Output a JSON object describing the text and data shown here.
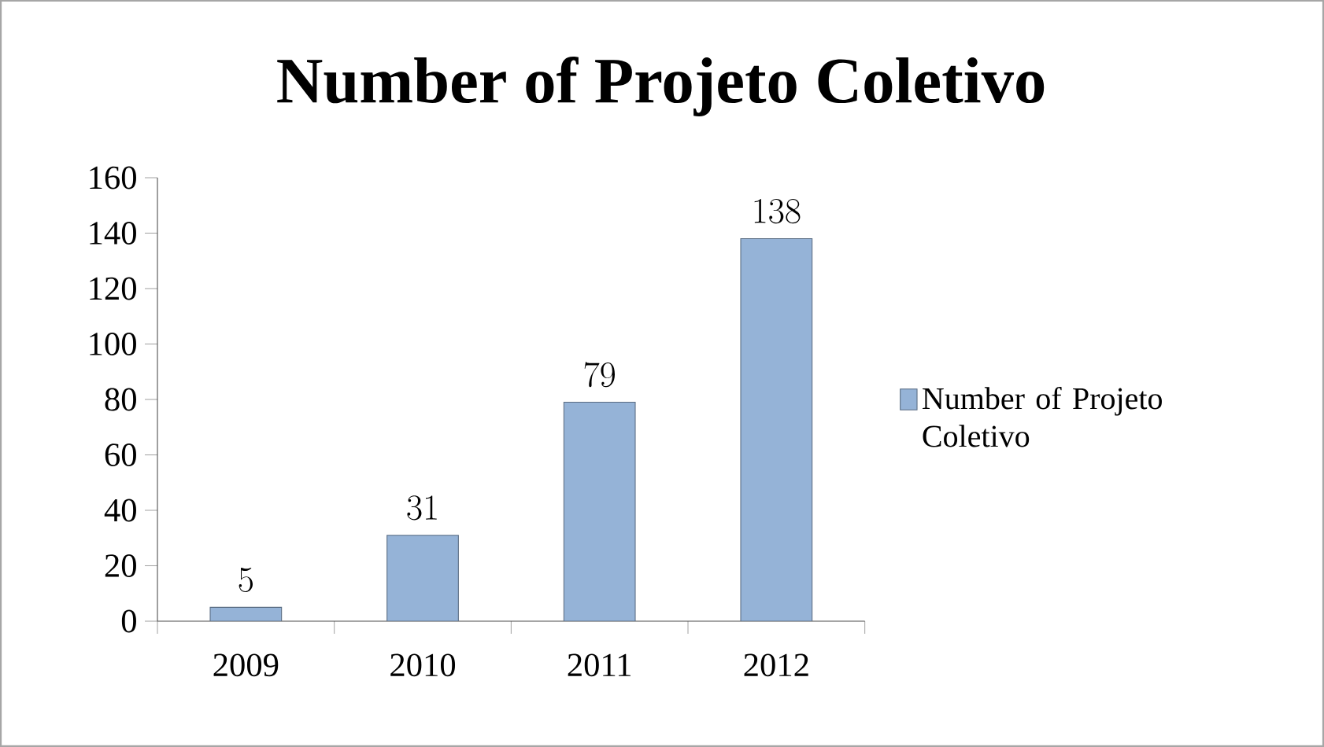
{
  "chart_data": {
    "type": "bar",
    "title": "Number of Projeto Coletivo",
    "categories": [
      "2009",
      "2010",
      "2011",
      "2012"
    ],
    "series": [
      {
        "name": "Number of Projeto Coletivo",
        "color": "#95b3d7",
        "values": [
          5,
          31,
          79,
          138
        ]
      }
    ],
    "ylim": [
      0,
      160
    ],
    "yticks": [
      0,
      20,
      40,
      60,
      80,
      100,
      120,
      140,
      160
    ],
    "data_labels": true,
    "legend": "right",
    "grid": false
  }
}
